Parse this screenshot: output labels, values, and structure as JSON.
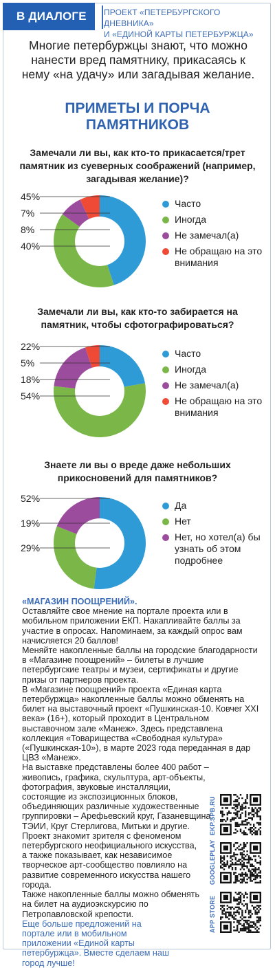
{
  "header": {
    "badge": "В ДИАЛОГЕ",
    "project_line1": "ПРОЕКТ «ПЕТЕРБУРГСКОГО ДНЕВНИКА»",
    "project_line2": "И «ЕДИНОЙ КАРТЫ ПЕТЕРБУРЖЦА»"
  },
  "intro": "Многие петербуржцы знают, что можно нанести вред памятнику, прикасаясь к нему «на удачу» или загадывая желание.",
  "main_title_line1": "ПРИМЕТЫ И ПОРЧА",
  "main_title_line2": "ПАМЯТНИКОВ",
  "colors": {
    "blue": "#2f9bd6",
    "green": "#7ab648",
    "purple": "#9b4c9d",
    "red": "#ee4a36",
    "brand": "#2360b4"
  },
  "chart_data": [
    {
      "type": "pie",
      "donut": true,
      "title": "Замечали ли вы, как кто-то прикасается/трет памятник из суеверных соображений (например, загадывая желание)?",
      "categories": [
        "Часто",
        "Иногда",
        "Не замечал(а)",
        "Не обращаю на это внимания"
      ],
      "values": [
        45,
        40,
        8,
        7
      ],
      "labels": [
        "45%",
        "40%",
        "8%",
        "7%"
      ],
      "colors": [
        "#2f9bd6",
        "#7ab648",
        "#9b4c9d",
        "#ee4a36"
      ]
    },
    {
      "type": "pie",
      "donut": true,
      "title": "Замечали ли вы, как кто-то забирается на памятник, чтобы сфотографироваться?",
      "categories": [
        "Часто",
        "Иногда",
        "Не замечал(а)",
        "Не обращаю на это внимания"
      ],
      "values": [
        22,
        54,
        18,
        5
      ],
      "labels": [
        "22%",
        "54%",
        "18%",
        "5%"
      ],
      "colors": [
        "#2f9bd6",
        "#7ab648",
        "#9b4c9d",
        "#ee4a36"
      ]
    },
    {
      "type": "pie",
      "donut": true,
      "title": "Знаете ли вы о вреде даже небольших прикосновений для памятников?",
      "categories": [
        "Да",
        "Нет",
        "Нет, но хотел(а) бы узнать об этом подробнее"
      ],
      "values": [
        52,
        29,
        19
      ],
      "labels": [
        "52%",
        "29%",
        "19%"
      ],
      "colors": [
        "#2f9bd6",
        "#7ab648",
        "#9b4c9d"
      ]
    }
  ],
  "shop": {
    "title": "«МАГАЗИН ПООЩРЕНИЙ».",
    "p1": "Оставляйте свое мнение на портале проекта или в мобильном приложении ЕКП. Накапливайте баллы за участие в опросах. Напоминаем, за каждый опрос вам начисляется 20 баллов!",
    "p2": "Меняйте накопленные баллы на городские благодарности в «Магазине поощрений» – билеты в лучшие петербургские театры и музеи, сертификаты и другие призы от партнеров проекта.",
    "p3": "В «Магазине поощрений» проекта «Единая карта петербуржца» накопленные баллы можно обменять на билет на выставочный проект «Пушкинская-10. Ковчег XXI века» (16+), который проходит в Центральном выставочном зале «Манеж». Здесь представлена коллекция «Товарищества «Свободная культура» («Пушкинская-10»), в марте 2023 года переданная в дар ЦВЗ «Манеж».",
    "p4": "На выставке представлены более 400 работ – живопись, графика, скульптура, арт-объекты, фотография, звуковые инсталляции, состоящие из экспозиционных блоков, объединяющих различные художественные группировки – Арефьевский круг, Газаневщина, ТЭИИ, Круг Стерлигова, Митьки и другие.",
    "p5": "Проект знакомит зрителя с феноменом петербургского неофициального искусства, а также показывает, как независимое творческое арт-сообщество повлияло на развитие современного искусства нашего города.",
    "p6": "Также накопленные баллы можно обменять на билет на аудиоэкскурсию по Петропавловской крепости.",
    "link": "Еще больше предложений на портале или в мобильном приложении «Единой карты петербуржца». Вместе сделаем наш город лучше!"
  },
  "qr": {
    "site": "EKP.SPB.RU",
    "gplay": "GOOGLEPLAY",
    "appstore": "APP STORE"
  }
}
